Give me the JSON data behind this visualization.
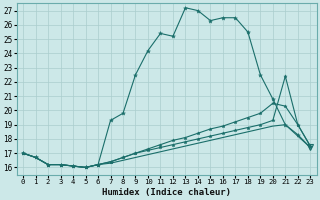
{
  "xlabel": "Humidex (Indice chaleur)",
  "xlim": [
    -0.5,
    23.5
  ],
  "ylim": [
    15.5,
    27.5
  ],
  "xticks": [
    0,
    1,
    2,
    3,
    4,
    5,
    6,
    7,
    8,
    9,
    10,
    11,
    12,
    13,
    14,
    15,
    16,
    17,
    18,
    19,
    20,
    21,
    22,
    23
  ],
  "yticks": [
    16,
    17,
    18,
    19,
    20,
    21,
    22,
    23,
    24,
    25,
    26,
    27
  ],
  "bg_color": "#cce8e8",
  "line_color": "#1a6e6a",
  "grid_color": "#aacece",
  "line1_y": [
    17.0,
    16.7,
    16.2,
    16.2,
    16.1,
    16.0,
    16.2,
    19.3,
    19.8,
    22.5,
    24.2,
    25.4,
    25.2,
    27.2,
    27.0,
    26.3,
    26.5,
    26.5,
    25.5,
    22.5,
    20.8,
    19.0,
    18.3,
    17.4
  ],
  "line2_y": [
    17.0,
    16.7,
    16.2,
    16.2,
    16.1,
    16.0,
    16.2,
    16.4,
    16.7,
    17.0,
    17.3,
    17.6,
    17.9,
    18.1,
    18.4,
    18.7,
    18.9,
    19.2,
    19.5,
    19.8,
    20.5,
    20.3,
    19.0,
    17.5
  ],
  "line3_y": [
    17.0,
    16.7,
    16.2,
    16.2,
    16.1,
    16.0,
    16.2,
    16.4,
    16.7,
    17.0,
    17.2,
    17.4,
    17.6,
    17.8,
    18.0,
    18.2,
    18.4,
    18.6,
    18.8,
    19.0,
    19.3,
    22.4,
    19.0,
    17.5
  ],
  "line4_y": [
    17.0,
    16.7,
    16.2,
    16.2,
    16.1,
    16.0,
    16.2,
    16.3,
    16.5,
    16.7,
    16.9,
    17.1,
    17.3,
    17.5,
    17.7,
    17.9,
    18.1,
    18.3,
    18.5,
    18.7,
    18.9,
    19.0,
    18.2,
    17.4
  ]
}
